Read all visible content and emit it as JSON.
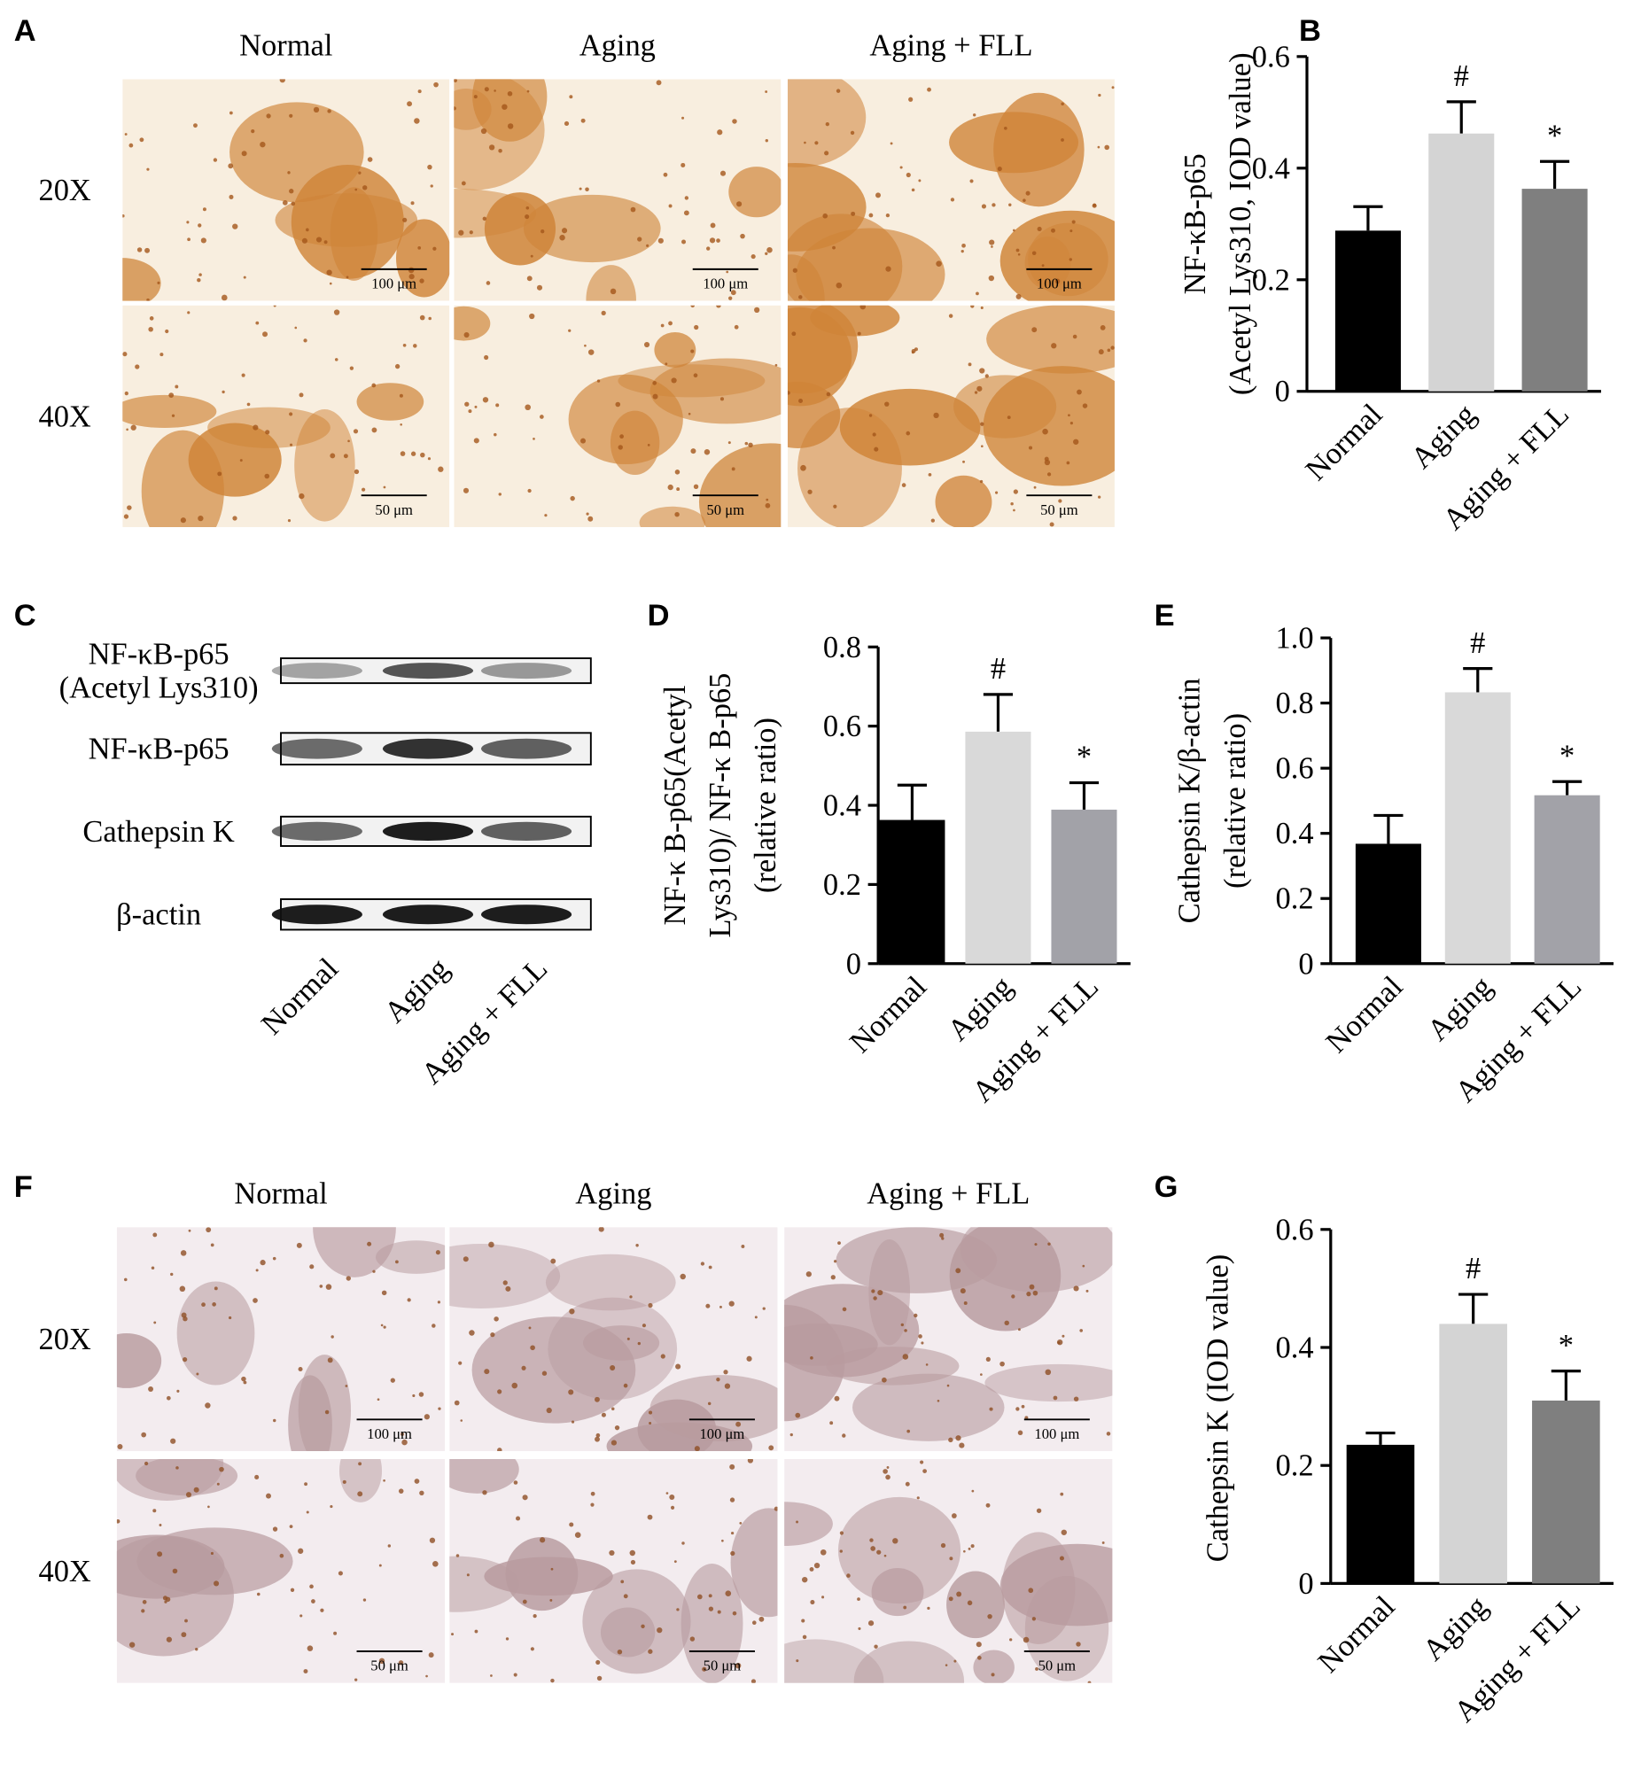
{
  "micrographs": [
    {
      "panel": "A",
      "columns": [
        "Normal",
        "Aging",
        "Aging + FLL"
      ],
      "rows": [
        "20X",
        "40X"
      ],
      "scale_bars": [
        "100 μm",
        "50 μm"
      ]
    },
    {
      "panel": "F",
      "columns": [
        "Normal",
        "Aging",
        "Aging + FLL"
      ],
      "rows": [
        "20X",
        "40X"
      ],
      "scale_bars": [
        "100 μm",
        "50 μm"
      ]
    }
  ],
  "blot": {
    "panel": "C",
    "bands": [
      [
        "NF-κB-p65",
        "(Acetyl Lys310)"
      ],
      [
        "NF-κB-p65"
      ],
      [
        "Cathepsin K"
      ],
      [
        "β-actin"
      ]
    ],
    "lanes": [
      "Normal",
      "Aging",
      "Aging + FLL"
    ]
  },
  "chart_data": [
    {
      "type": "bar",
      "panel": "B",
      "ylabel": [
        "NF-κB-p65",
        "(Acetyl Lys310, IOD value)"
      ],
      "categories": [
        "Normal",
        "Aging",
        "Aging + FLL"
      ],
      "values": [
        0.288,
        0.462,
        0.363
      ],
      "errors": [
        0.043,
        0.057,
        0.049
      ],
      "annotations": [
        null,
        "#",
        "*"
      ],
      "colors": [
        "#000000",
        "#d4d4d4",
        "#7f7f7f"
      ],
      "ylim": [
        0,
        0.6
      ],
      "yticks": [
        0,
        0.2,
        0.4,
        0.6
      ]
    },
    {
      "type": "bar",
      "panel": "D",
      "ylabel": [
        "NF-κ B-p65(Acetyl",
        "Lys310)/ NF-κ B-p65",
        "(relative ratio)"
      ],
      "categories": [
        "Normal",
        "Aging",
        "Aging + FLL"
      ],
      "values": [
        0.363,
        0.586,
        0.389
      ],
      "errors": [
        0.088,
        0.094,
        0.068
      ],
      "annotations": [
        null,
        "#",
        "*"
      ],
      "colors": [
        "#000000",
        "#d9d9d9",
        "#a2a2a8"
      ],
      "ylim": [
        0,
        0.8
      ],
      "yticks": [
        0,
        0.2,
        0.4,
        0.6,
        0.8
      ]
    },
    {
      "type": "bar",
      "panel": "E",
      "ylabel": [
        "Cathepsin K/β-actin",
        "(relative ratio)"
      ],
      "categories": [
        "Normal",
        "Aging",
        "Aging + FLL"
      ],
      "values": [
        0.368,
        0.833,
        0.517
      ],
      "errors": [
        0.087,
        0.073,
        0.042
      ],
      "annotations": [
        null,
        "#",
        "*"
      ],
      "colors": [
        "#000000",
        "#d9d9d9",
        "#a2a2a8"
      ],
      "ylim": [
        0,
        1
      ],
      "yticks": [
        0,
        0.2,
        0.4,
        0.6,
        0.8,
        {
          "value": 1,
          "label": "1.0"
        }
      ]
    },
    {
      "type": "bar",
      "panel": "G",
      "ylabel": [
        "Cathepsin K (IOD value)"
      ],
      "categories": [
        "Normal",
        "Aging",
        "Aging + FLL"
      ],
      "values": [
        0.235,
        0.44,
        0.31
      ],
      "errors": [
        0.02,
        0.05,
        0.05
      ],
      "annotations": [
        null,
        "#",
        "*"
      ],
      "colors": [
        "#000000",
        "#d4d4d4",
        "#7f7f7f"
      ],
      "ylim": [
        0,
        0.6
      ],
      "yticks": [
        0,
        0.2,
        0.4,
        0.6
      ]
    }
  ]
}
